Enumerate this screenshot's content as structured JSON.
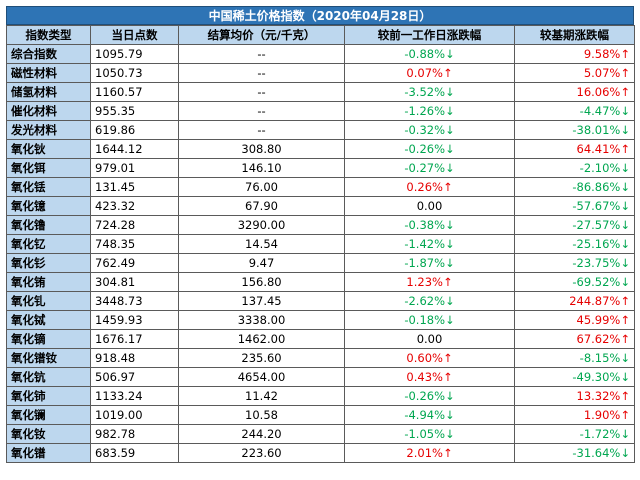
{
  "title": "中国稀土价格指数（2020年04月28日）",
  "colors": {
    "up": "#e60000",
    "down": "#00a650",
    "header": "#bdd7ee",
    "title_bg": "#2e74b5"
  },
  "headers": [
    "指数类型",
    "当日点数",
    "结算均价（元/千克）",
    "较前一工作日涨跌幅",
    "较基期涨跌幅"
  ],
  "rows": [
    {
      "name": "综合指数",
      "points": "1095.79",
      "avg": "--",
      "d1": "-0.88%↓",
      "d1_dir": "down",
      "d2": "9.58%↑",
      "d2_dir": "up"
    },
    {
      "name": "磁性材料",
      "points": "1050.73",
      "avg": "--",
      "d1": "0.07%↑",
      "d1_dir": "up",
      "d2": "5.07%↑",
      "d2_dir": "up"
    },
    {
      "name": "储氢材料",
      "points": "1160.57",
      "avg": "--",
      "d1": "-3.52%↓",
      "d1_dir": "down",
      "d2": "16.06%↑",
      "d2_dir": "up"
    },
    {
      "name": "催化材料",
      "points": "955.35",
      "avg": "--",
      "d1": "-1.26%↓",
      "d1_dir": "down",
      "d2": "-4.47%↓",
      "d2_dir": "down"
    },
    {
      "name": "发光材料",
      "points": "619.86",
      "avg": "--",
      "d1": "-0.32%↓",
      "d1_dir": "down",
      "d2": "-38.01%↓",
      "d2_dir": "down"
    },
    {
      "name": "氧化钬",
      "points": "1644.12",
      "avg": "308.80",
      "d1": "-0.26%↓",
      "d1_dir": "down",
      "d2": "64.41%↑",
      "d2_dir": "up"
    },
    {
      "name": "氧化铒",
      "points": "979.01",
      "avg": "146.10",
      "d1": "-0.27%↓",
      "d1_dir": "down",
      "d2": "-2.10%↓",
      "d2_dir": "down"
    },
    {
      "name": "氧化铥",
      "points": "131.45",
      "avg": "76.00",
      "d1": "0.26%↑",
      "d1_dir": "up",
      "d2": "-86.86%↓",
      "d2_dir": "down"
    },
    {
      "name": "氧化镱",
      "points": "423.32",
      "avg": "67.90",
      "d1": "0.00",
      "d1_dir": "flat",
      "d2": "-57.67%↓",
      "d2_dir": "down"
    },
    {
      "name": "氧化镥",
      "points": "724.28",
      "avg": "3290.00",
      "d1": "-0.38%↓",
      "d1_dir": "down",
      "d2": "-27.57%↓",
      "d2_dir": "down"
    },
    {
      "name": "氧化钇",
      "points": "748.35",
      "avg": "14.54",
      "d1": "-1.42%↓",
      "d1_dir": "down",
      "d2": "-25.16%↓",
      "d2_dir": "down"
    },
    {
      "name": "氧化钐",
      "points": "762.49",
      "avg": "9.47",
      "d1": "-1.87%↓",
      "d1_dir": "down",
      "d2": "-23.75%↓",
      "d2_dir": "down"
    },
    {
      "name": "氧化铕",
      "points": "304.81",
      "avg": "156.80",
      "d1": "1.23%↑",
      "d1_dir": "up",
      "d2": "-69.52%↓",
      "d2_dir": "down"
    },
    {
      "name": "氧化钆",
      "points": "3448.73",
      "avg": "137.45",
      "d1": "-2.62%↓",
      "d1_dir": "down",
      "d2": "244.87%↑",
      "d2_dir": "up"
    },
    {
      "name": "氧化铽",
      "points": "1459.93",
      "avg": "3338.00",
      "d1": "-0.18%↓",
      "d1_dir": "down",
      "d2": "45.99%↑",
      "d2_dir": "up"
    },
    {
      "name": "氧化镝",
      "points": "1676.17",
      "avg": "1462.00",
      "d1": "0.00",
      "d1_dir": "flat",
      "d2": "67.62%↑",
      "d2_dir": "up"
    },
    {
      "name": "氧化镨钕",
      "points": "918.48",
      "avg": "235.60",
      "d1": "0.60%↑",
      "d1_dir": "up",
      "d2": "-8.15%↓",
      "d2_dir": "down"
    },
    {
      "name": "氧化钪",
      "points": "506.97",
      "avg": "4654.00",
      "d1": "0.43%↑",
      "d1_dir": "up",
      "d2": "-49.30%↓",
      "d2_dir": "down"
    },
    {
      "name": "氧化铈",
      "points": "1133.24",
      "avg": "11.42",
      "d1": "-0.26%↓",
      "d1_dir": "down",
      "d2": "13.32%↑",
      "d2_dir": "up"
    },
    {
      "name": "氧化镧",
      "points": "1019.00",
      "avg": "10.58",
      "d1": "-4.94%↓",
      "d1_dir": "down",
      "d2": "1.90%↑",
      "d2_dir": "up"
    },
    {
      "name": "氧化钕",
      "points": "982.78",
      "avg": "244.20",
      "d1": "-1.05%↓",
      "d1_dir": "down",
      "d2": "-1.72%↓",
      "d2_dir": "down"
    },
    {
      "name": "氧化镨",
      "points": "683.59",
      "avg": "223.60",
      "d1": "2.01%↑",
      "d1_dir": "up",
      "d2": "-31.64%↓",
      "d2_dir": "down"
    }
  ]
}
